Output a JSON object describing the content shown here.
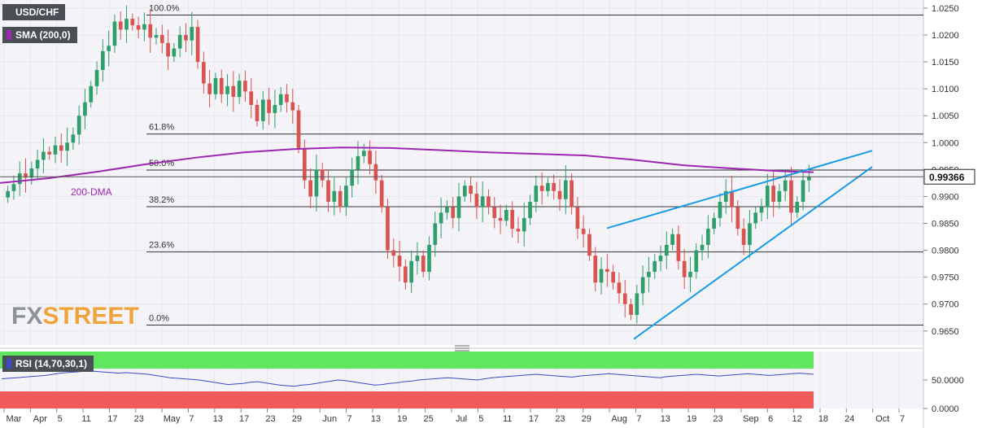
{
  "header": {
    "pair": "USD/CHF",
    "indicator": "SMA (200,0)",
    "rsi_label": "RSI (14,70,30,1)"
  },
  "logo": {
    "fx": "FX",
    "street": "STREET"
  },
  "colors": {
    "bull": "#2e9e6a",
    "bear": "#d9534f",
    "sma": "#9c27b0",
    "trend": "#1a9be6",
    "rsi_line": "#3d49c8",
    "overbought": "#5fe85f",
    "oversold": "#f05a5a",
    "price_tag": "#222222"
  },
  "chart_data": [
    {
      "type": "candlestick",
      "title": "USD/CHF",
      "x_ticks": [
        "Mar",
        "Apr",
        "5",
        "11",
        "17",
        "23",
        "May",
        "7",
        "13",
        "17",
        "23",
        "29",
        "Jun",
        "7",
        "13",
        "19",
        "25",
        "Jul",
        "5",
        "11",
        "17",
        "23",
        "29",
        "Aug",
        "7",
        "13",
        "19",
        "23",
        "Sep",
        "6",
        "12",
        "18",
        "24",
        "Oct",
        "7"
      ],
      "y_ticks": [
        "1.0250",
        "1.0200",
        "1.0150",
        "1.0100",
        "1.0050",
        "1.0000",
        "0.9950",
        "0.9900",
        "0.9850",
        "0.9800",
        "0.9750",
        "0.9700",
        "0.9650"
      ],
      "ylim": [
        0.9624,
        1.0265
      ],
      "last_price": "0.99366",
      "fibonacci": [
        {
          "label": "100.0%",
          "value": 1.0237
        },
        {
          "label": "61.8%",
          "value": 1.0016
        },
        {
          "label": "50.0%",
          "value": 0.9949
        },
        {
          "label": "38.2%",
          "value": 0.9881
        },
        {
          "label": "23.6%",
          "value": 0.9797
        },
        {
          "label": "0.0%",
          "value": 0.9661
        }
      ],
      "sma_label": "200-DMA",
      "sma": [
        [
          0,
          0.9925
        ],
        [
          60,
          0.9934
        ],
        [
          120,
          0.9946
        ],
        [
          180,
          0.996
        ],
        [
          240,
          0.9972
        ],
        [
          300,
          0.9982
        ],
        [
          360,
          0.9988
        ],
        [
          420,
          0.9991
        ],
        [
          480,
          0.999
        ],
        [
          540,
          0.9986
        ],
        [
          600,
          0.9982
        ],
        [
          660,
          0.9979
        ],
        [
          720,
          0.9976
        ],
        [
          780,
          0.9968
        ],
        [
          840,
          0.9958
        ],
        [
          900,
          0.9952
        ],
        [
          960,
          0.9947
        ],
        [
          1000,
          0.9945
        ]
      ],
      "trendlines": [
        {
          "from": [
            0,
            0.9841
          ],
          "to": [
            0,
            0.9985
          ]
        },
        {
          "from": [
            0,
            0.9635
          ],
          "to": [
            0,
            0.9955
          ]
        }
      ],
      "candles": [
        0.991,
        0.9923,
        0.9943,
        0.9935,
        0.9952,
        0.9968,
        0.9983,
        0.9978,
        0.9995,
        0.9985,
        1.0,
        1.0015,
        1.005,
        1.0075,
        1.0105,
        1.0135,
        1.017,
        1.018,
        1.0225,
        1.021,
        1.023,
        1.0218,
        1.021,
        1.022,
        1.0195,
        1.02,
        1.0185,
        1.016,
        1.0175,
        1.02,
        1.019,
        1.0215,
        1.015,
        1.011,
        1.009,
        1.012,
        1.009,
        1.0105,
        1.0085,
        1.0115,
        1.0095,
        1.007,
        1.004,
        1.008,
        1.0055,
        1.007,
        1.009,
        1.0075,
        1.006,
        0.999,
        0.993,
        0.99,
        0.995,
        0.993,
        0.989,
        0.991,
        0.988,
        0.992,
        0.995,
        0.9975,
        0.9985,
        0.996,
        0.993,
        0.988,
        0.98,
        0.979,
        0.977,
        0.974,
        0.978,
        0.979,
        0.976,
        0.981,
        0.985,
        0.987,
        0.988,
        0.986,
        0.99,
        0.992,
        0.9905,
        0.988,
        0.99,
        0.988,
        0.986,
        0.9855,
        0.9875,
        0.984,
        0.9835,
        0.986,
        0.989,
        0.992,
        0.991,
        0.9925,
        0.991,
        0.9895,
        0.993,
        0.988,
        0.984,
        0.983,
        0.979,
        0.974,
        0.9765,
        0.976,
        0.974,
        0.972,
        0.97,
        0.968,
        0.972,
        0.975,
        0.976,
        0.978,
        0.979,
        0.981,
        0.983,
        0.978,
        0.975,
        0.976,
        0.98,
        0.981,
        0.984,
        0.986,
        0.989,
        0.991,
        0.988,
        0.984,
        0.981,
        0.985,
        0.987,
        0.988,
        0.992,
        0.989,
        0.991,
        0.993,
        0.987,
        0.989,
        0.993,
        0.9937
      ]
    },
    {
      "type": "line",
      "title": "RSI (14,70,30,1)",
      "y_ticks": [
        "50.0000",
        "0.0000"
      ],
      "ylim": [
        0,
        100
      ],
      "bands": {
        "overbought": 70,
        "oversold": 30
      },
      "values": [
        52,
        53,
        54,
        55,
        56,
        57,
        58,
        60,
        62,
        63,
        64,
        65,
        66,
        65,
        64,
        63,
        62,
        63,
        62,
        61,
        60,
        58,
        56,
        54,
        53,
        52,
        51,
        50,
        48,
        46,
        44,
        42,
        43,
        44,
        46,
        47,
        45,
        43,
        41,
        40,
        39,
        41,
        42,
        44,
        46,
        48,
        50,
        49,
        47,
        45,
        43,
        41,
        42,
        44,
        45,
        47,
        48,
        50,
        51,
        52,
        53,
        54,
        53,
        52,
        51,
        50,
        52,
        54,
        55,
        56,
        57,
        58,
        59,
        60,
        59,
        58,
        57,
        56,
        55,
        57,
        58,
        59,
        60,
        61,
        60,
        59,
        58,
        57,
        56,
        55,
        54,
        56,
        57,
        58,
        59,
        60,
        59,
        58,
        57,
        58,
        59,
        60,
        61,
        60,
        59,
        58,
        59,
        60,
        61,
        62,
        61,
        60
      ]
    }
  ]
}
